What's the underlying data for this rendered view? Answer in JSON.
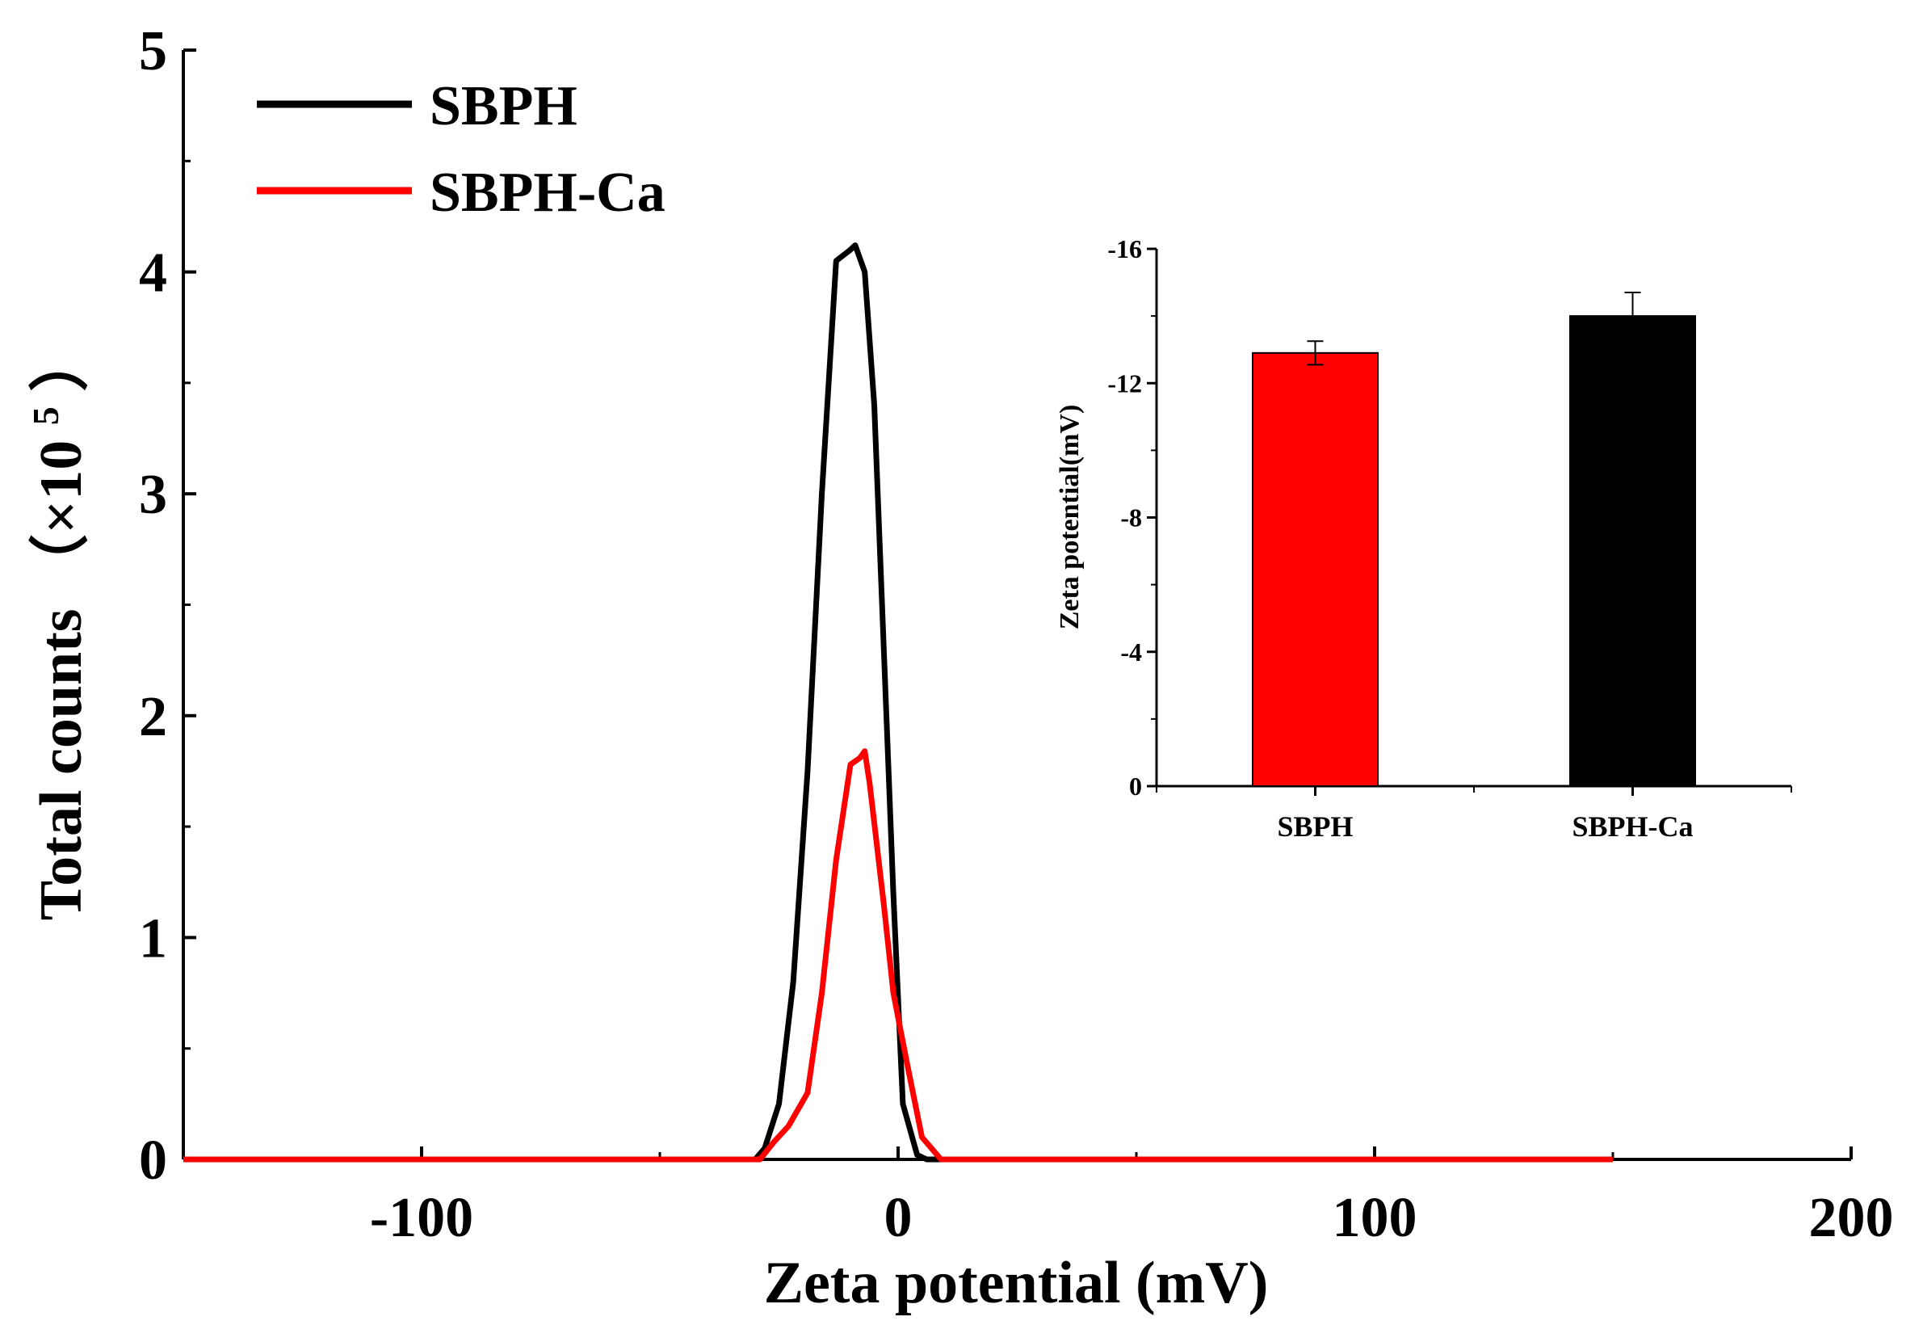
{
  "chart_data": [
    {
      "type": "line",
      "xlabel": "Zeta potential (mV)",
      "ylabel_main": "Total counts",
      "ylabel_unit": "（×10",
      "ylabel_exp": "5",
      "ylabel_close": "）",
      "xlim": [
        -150,
        200
      ],
      "ylim": [
        0,
        5
      ],
      "xticks": [
        -100,
        0,
        100,
        200
      ],
      "yticks": [
        0,
        1,
        2,
        3,
        4,
        5
      ],
      "legend_position": "top-left",
      "series": [
        {
          "name": "SBPH",
          "color": "#000000",
          "points": [
            [
              -150,
              0
            ],
            [
              -30,
              0
            ],
            [
              -28,
              0.05
            ],
            [
              -25,
              0.25
            ],
            [
              -22,
              0.8
            ],
            [
              -19,
              1.75
            ],
            [
              -16,
              3.0
            ],
            [
              -13,
              4.05
            ],
            [
              -10,
              4.1
            ],
            [
              -9,
              4.12
            ],
            [
              -7,
              4.0
            ],
            [
              -5,
              3.4
            ],
            [
              -3,
              2.3
            ],
            [
              -1,
              1.2
            ],
            [
              1,
              0.25
            ],
            [
              4,
              0.02
            ],
            [
              6,
              0
            ],
            [
              150,
              0
            ]
          ]
        },
        {
          "name": "SBPH-Ca",
          "color": "#ff0000",
          "points": [
            [
              -150,
              0
            ],
            [
              -29,
              0
            ],
            [
              -26,
              0.08
            ],
            [
              -23,
              0.15
            ],
            [
              -19,
              0.3
            ],
            [
              -16,
              0.75
            ],
            [
              -13,
              1.35
            ],
            [
              -10,
              1.78
            ],
            [
              -8,
              1.81
            ],
            [
              -7,
              1.84
            ],
            [
              -6,
              1.7
            ],
            [
              -3,
              1.15
            ],
            [
              -1,
              0.75
            ],
            [
              2,
              0.42
            ],
            [
              5,
              0.1
            ],
            [
              9,
              0
            ],
            [
              150,
              0
            ]
          ]
        }
      ]
    },
    {
      "type": "bar",
      "ylabel": "Zeta potential(mV)",
      "categories": [
        "SBPH",
        "SBPH-Ca"
      ],
      "values": [
        -12.9,
        -14.0
      ],
      "errors": [
        0.35,
        0.7
      ],
      "colors": [
        "#ff0000",
        "#000000"
      ],
      "ylim": [
        0,
        -16
      ],
      "yticks": [
        0,
        -4,
        -8,
        -12,
        -16
      ],
      "ytick_labels": [
        "0",
        "-4",
        "-8",
        "-12",
        "-16"
      ]
    }
  ]
}
